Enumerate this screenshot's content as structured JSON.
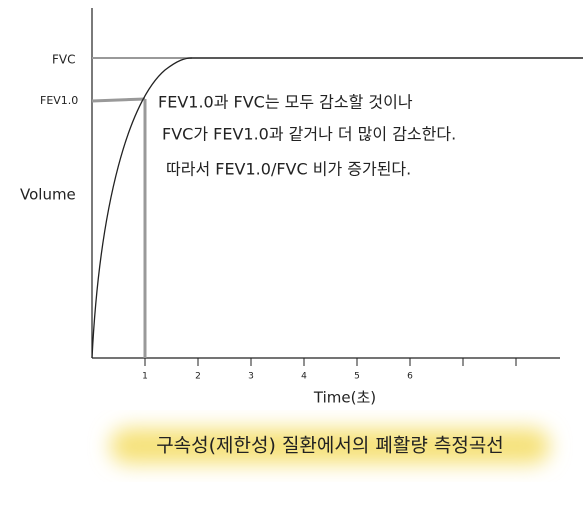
{
  "y_labels": {
    "fvc": "FVC",
    "fev": "FEV1.0",
    "axis": "Volume"
  },
  "x_ticks": [
    "1",
    "2",
    "3",
    "4",
    "5",
    "6"
  ],
  "x_label": "Time(초)",
  "note": [
    "FEV1.0과 FVC는 모두 감소할 것이나",
    "FVC가 FEV1.0과 같거나 더 많이 감소한다.",
    "따라서 FEV1.0/FVC 비가 증가된다."
  ],
  "caption": "구속성(제한성) 질환에서의 폐활량 측정곡선"
}
